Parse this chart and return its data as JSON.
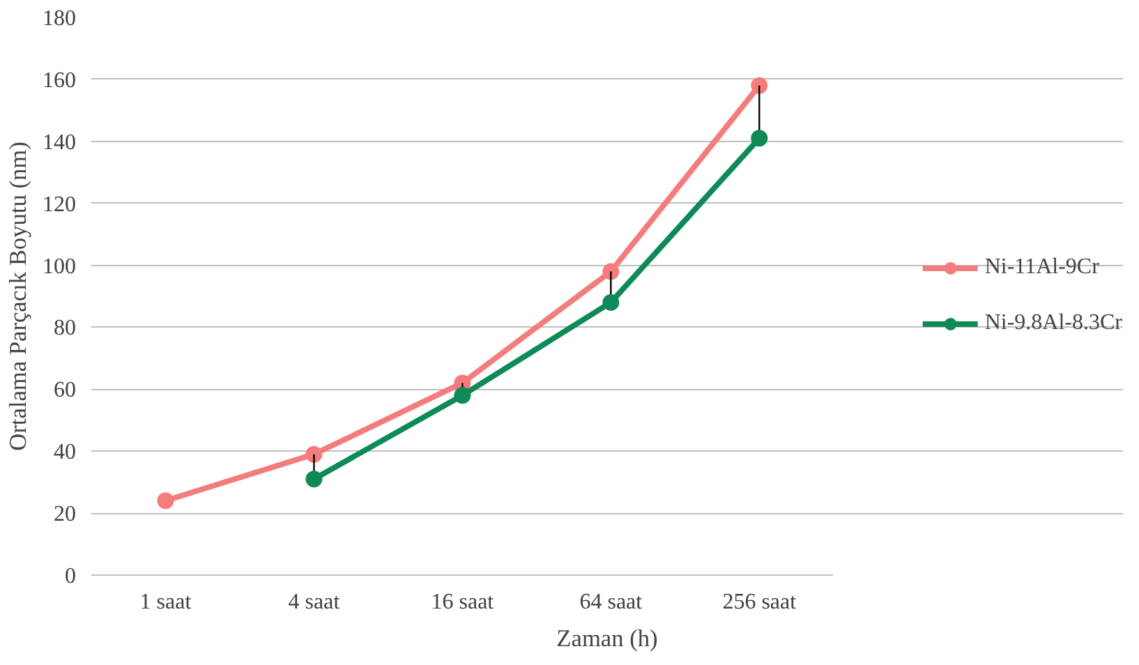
{
  "chart_data": {
    "type": "line",
    "xlabel": "Zaman (h)",
    "ylabel": "Ortalama Parçacık Boyutu (nm)",
    "categories": [
      "1 saat",
      "4 saat",
      "16 saat",
      "64 saat",
      "256 saat"
    ],
    "series": [
      {
        "name": "Ni-11Al-9Cr",
        "color": "#f47c7c",
        "values": [
          24,
          39,
          62,
          98,
          158
        ]
      },
      {
        "name": "Ni-9.8Al-8.3Cr",
        "color": "#0e8a57",
        "values": [
          null,
          31,
          58,
          88,
          141
        ],
        "errors": [
          null,
          [
            31,
            39
          ],
          [
            58,
            62
          ],
          [
            88,
            98
          ],
          [
            141,
            158
          ]
        ]
      }
    ],
    "ylim": [
      0,
      180
    ],
    "yticks": [
      0,
      20,
      40,
      60,
      80,
      100,
      120,
      140,
      160,
      180
    ],
    "grid": "y",
    "legend": "right",
    "marker": "circle",
    "line_style": "solid"
  }
}
